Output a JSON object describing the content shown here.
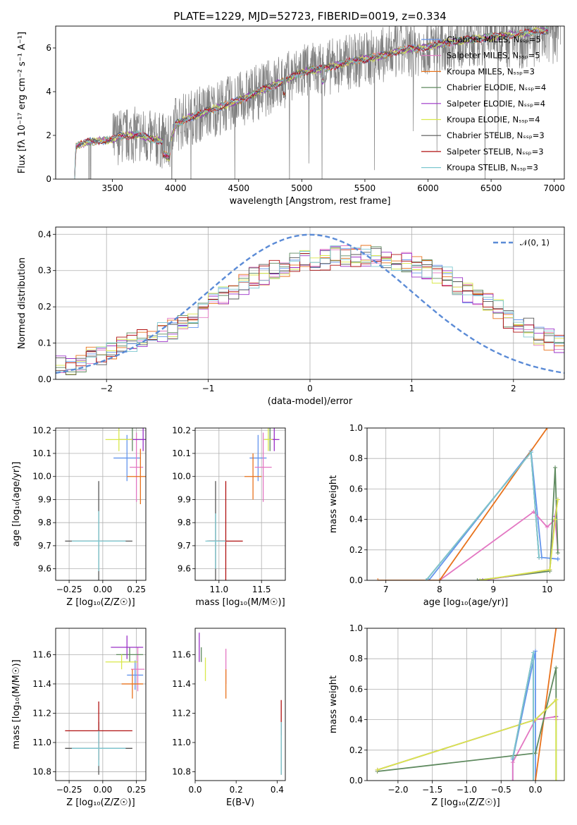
{
  "title": "PLATE=1229, MJD=52723, FIBERID=0019, z=0.334",
  "colors": {
    "Chabrier MILES": "#6495ed",
    "Salpeter MILES": "#e377c2",
    "Kroupa MILES": "#e8721c",
    "Chabrier ELODIE": "#5f8a5f",
    "Salpeter ELODIE": "#9b30c8",
    "Kroupa ELODIE": "#d9e84a",
    "Chabrier STELIB": "#555555",
    "Salpeter STELIB": "#b01010",
    "Kroupa STELIB": "#7ec8d0",
    "data": "#808080",
    "gauss": "#5b8bd6"
  },
  "chart_data": [
    {
      "type": "line",
      "title": "PLATE=1229, MJD=52723, FIBERID=0019, z=0.334",
      "xlabel": "wavelength [Angstrom, rest frame]",
      "ylabel": "Flux [fλ 10⁻¹⁷ erg cm⁻² s⁻¹ A⁻¹]",
      "xlim": [
        3050,
        7080
      ],
      "ylim": [
        0,
        7
      ],
      "xticks": [
        3500,
        4000,
        4500,
        5000,
        5500,
        6000,
        6500,
        7000
      ],
      "yticks": [
        0,
        2,
        4,
        6
      ],
      "grid": false,
      "legend_position": "top-right",
      "series": [
        {
          "name": "Chabrier MILES, Nₛₛₚ=5"
        },
        {
          "name": "Salpeter MILES, Nₛₛₚ=5"
        },
        {
          "name": "Kroupa MILES, Nₛₛₚ=3"
        },
        {
          "name": "Chabrier ELODIE, Nₛₛₚ=4"
        },
        {
          "name": "Salpeter ELODIE, Nₛₛₚ=4"
        },
        {
          "name": "Kroupa ELODIE, Nₛₛₚ=4"
        },
        {
          "name": "Chabrier STELIB, Nₛₛₚ=3"
        },
        {
          "name": "Salpeter STELIB, Nₛₛₚ=3"
        },
        {
          "name": "Kroupa STELIB, Nₛₛₚ=3"
        }
      ],
      "model_continuum": [
        [
          3200,
          0
        ],
        [
          3210,
          1.5
        ],
        [
          3300,
          1.7
        ],
        [
          3500,
          1.8
        ],
        [
          3550,
          1.95
        ],
        [
          3700,
          2.05
        ],
        [
          3800,
          1.85
        ],
        [
          3900,
          1.75
        ],
        [
          3950,
          1.6
        ],
        [
          4000,
          2.5
        ],
        [
          4100,
          2.8
        ],
        [
          4300,
          3.2
        ],
        [
          4500,
          3.6
        ],
        [
          4700,
          4.1
        ],
        [
          4900,
          4.6
        ],
        [
          5000,
          4.9
        ],
        [
          5200,
          5.1
        ],
        [
          5400,
          5.4
        ],
        [
          5600,
          5.6
        ],
        [
          5800,
          5.9
        ],
        [
          6000,
          6.05
        ],
        [
          6200,
          6.3
        ],
        [
          6500,
          6.5
        ],
        [
          6800,
          6.7
        ],
        [
          6900,
          6.8
        ]
      ],
      "data_noise_start": 3500
    },
    {
      "type": "histogram",
      "xlabel": "(data-model)/error",
      "ylabel": "Normed distribution",
      "xlim": [
        -2.5,
        2.5
      ],
      "ylim": [
        0,
        0.42
      ],
      "xticks": [
        -2,
        -1,
        0,
        1,
        2
      ],
      "yticks": [
        0.0,
        0.1,
        0.2,
        0.3,
        0.4
      ],
      "grid": true,
      "legend": "𝒩(0, 1)",
      "legend_position": "top-right",
      "bin_width": 0.1,
      "bins_start": -2.5,
      "mean_profile": [
        0.04,
        0.04,
        0.05,
        0.06,
        0.07,
        0.08,
        0.09,
        0.1,
        0.11,
        0.12,
        0.13,
        0.14,
        0.16,
        0.17,
        0.19,
        0.21,
        0.23,
        0.24,
        0.26,
        0.28,
        0.29,
        0.3,
        0.31,
        0.32,
        0.33,
        0.33,
        0.33,
        0.34,
        0.34,
        0.34,
        0.34,
        0.34,
        0.33,
        0.33,
        0.32,
        0.31,
        0.3,
        0.29,
        0.28,
        0.26,
        0.24,
        0.23,
        0.21,
        0.19,
        0.17,
        0.15,
        0.14,
        0.12,
        0.11,
        0.1,
        0.08
      ]
    },
    {
      "type": "scatter",
      "xlabel": "Z [log₁₀(Z/Z☉)]",
      "ylabel": "age  [log₁₀(age/yr)]",
      "xlim": [
        -0.35,
        0.32
      ],
      "ylim": [
        9.55,
        10.21
      ],
      "xticks": [
        -0.25,
        0.0,
        0.25
      ],
      "yticks": [
        9.6,
        9.7,
        9.8,
        9.9,
        10.0,
        10.1,
        10.2
      ],
      "grid": true,
      "points": [
        {
          "model": "Chabrier MILES",
          "x": 0.18,
          "y": 10.08,
          "xe": 0.1,
          "ye": 0.1
        },
        {
          "model": "Salpeter MILES",
          "x": 0.25,
          "y": 10.04,
          "xe": 0.05,
          "ye": 0.15
        },
        {
          "model": "Kroupa MILES",
          "x": 0.28,
          "y": 10.0,
          "xe": 0.1,
          "ye": 0.12
        },
        {
          "model": "Chabrier ELODIE",
          "x": 0.22,
          "y": 10.16,
          "xe": 0.1,
          "ye": 0.05
        },
        {
          "model": "Salpeter ELODIE",
          "x": 0.3,
          "y": 10.16,
          "xe": 0.1,
          "ye": 0.05
        },
        {
          "model": "Kroupa ELODIE",
          "x": 0.12,
          "y": 10.16,
          "xe": 0.1,
          "ye": 0.05
        },
        {
          "model": "Chabrier STELIB",
          "x": -0.03,
          "y": 9.72,
          "xe": 0.25,
          "ye": 0.26
        },
        {
          "model": "Kroupa STELIB",
          "x": -0.03,
          "y": 9.72,
          "xe": 0.2,
          "ye": 0.13
        }
      ]
    },
    {
      "type": "scatter",
      "xlabel": "mass [log₁₀(M/M☉)]",
      "ylabel": "",
      "xlim": [
        10.72,
        11.78
      ],
      "ylim": [
        9.55,
        10.21
      ],
      "xticks": [
        11.0,
        11.5
      ],
      "yticks": [
        9.6,
        9.7,
        9.8,
        9.9,
        10.0,
        10.1,
        10.2
      ],
      "grid": true,
      "points": [
        {
          "model": "Chabrier MILES",
          "x": 11.46,
          "y": 10.08,
          "xe": 0.1,
          "ye": 0.1
        },
        {
          "model": "Salpeter MILES",
          "x": 11.52,
          "y": 10.04,
          "xe": 0.1,
          "ye": 0.15
        },
        {
          "model": "Kroupa MILES",
          "x": 11.4,
          "y": 10.0,
          "xe": 0.1,
          "ye": 0.1
        },
        {
          "model": "Chabrier ELODIE",
          "x": 11.6,
          "y": 10.16,
          "xe": 0.07,
          "ye": 0.05
        },
        {
          "model": "Salpeter ELODIE",
          "x": 11.65,
          "y": 10.16,
          "xe": 0.06,
          "ye": 0.05
        },
        {
          "model": "Kroupa ELODIE",
          "x": 11.58,
          "y": 10.16,
          "xe": 0.05,
          "ye": 0.05
        },
        {
          "model": "Chabrier STELIB",
          "x": 10.96,
          "y": 9.72,
          "xe": 0.1,
          "ye": 0.26
        },
        {
          "model": "Salpeter STELIB",
          "x": 11.08,
          "y": 9.72,
          "xe": 0.2,
          "ye": 0.26
        },
        {
          "model": "Kroupa STELIB",
          "x": 10.96,
          "y": 9.72,
          "xe": 0.12,
          "ye": 0.12
        }
      ]
    },
    {
      "type": "line",
      "xlabel": "age  [log₁₀(age/yr)]",
      "ylabel": "mass weight",
      "xlim": [
        6.65,
        10.32
      ],
      "ylim": [
        0,
        1
      ],
      "xticks": [
        7,
        8,
        9,
        10
      ],
      "yticks": [
        0.0,
        0.2,
        0.4,
        0.6,
        0.8,
        1.0
      ],
      "grid": true,
      "series": [
        {
          "model": "Chabrier MILES",
          "x": [
            7.8,
            9.7,
            9.9,
            10.2,
            10.2
          ],
          "y": [
            0.0,
            0.85,
            0.15,
            0.14,
            0.14
          ]
        },
        {
          "model": "Salpeter MILES",
          "x": [
            8.0,
            9.75,
            10.0,
            10.15,
            10.2
          ],
          "y": [
            0.0,
            0.45,
            0.35,
            0.4,
            0.2
          ]
        },
        {
          "model": "Kroupa MILES",
          "x": [
            6.85,
            8.0,
            10.0
          ],
          "y": [
            0.0,
            0.0,
            1.0
          ]
        },
        {
          "model": "Chabrier ELODIE",
          "x": [
            8.7,
            10.05,
            10.15,
            10.2
          ],
          "y": [
            0.0,
            0.06,
            0.74,
            0.18
          ]
        },
        {
          "model": "Salpeter ELODIE",
          "x": [
            8.8,
            10.05,
            10.15,
            10.2
          ],
          "y": [
            0.0,
            0.07,
            0.42,
            0.53
          ]
        },
        {
          "model": "Kroupa ELODIE",
          "x": [
            8.75,
            10.05,
            10.15,
            10.2
          ],
          "y": [
            0.0,
            0.07,
            0.4,
            0.53
          ]
        },
        {
          "model": "Chabrier STELIB",
          "x": [
            7.75,
            9.7,
            9.85
          ],
          "y": [
            0.0,
            0.84,
            0.15
          ]
        },
        {
          "model": "Kroupa STELIB",
          "x": [
            7.75,
            9.7,
            9.85
          ],
          "y": [
            0.0,
            0.84,
            0.15
          ]
        }
      ]
    },
    {
      "type": "scatter",
      "xlabel": "Z [log₁₀(Z/Z☉)]",
      "ylabel": "mass [log₁₀(M/M☉)]",
      "xlim": [
        -0.35,
        0.32
      ],
      "ylim": [
        10.74,
        11.78
      ],
      "xticks": [
        -0.25,
        0.0,
        0.25
      ],
      "yticks": [
        10.8,
        11.0,
        11.2,
        11.4,
        11.6
      ],
      "grid": true,
      "points": [
        {
          "model": "Chabrier MILES",
          "x": 0.24,
          "y": 11.46,
          "xe": 0.06,
          "ye": 0.1
        },
        {
          "model": "Salpeter MILES",
          "x": 0.26,
          "y": 11.5,
          "xe": 0.05,
          "ye": 0.15
        },
        {
          "model": "Kroupa MILES",
          "x": 0.22,
          "y": 11.4,
          "xe": 0.08,
          "ye": 0.1
        },
        {
          "model": "Chabrier ELODIE",
          "x": 0.2,
          "y": 11.6,
          "xe": 0.1,
          "ye": 0.05
        },
        {
          "model": "Salpeter ELODIE",
          "x": 0.18,
          "y": 11.65,
          "xe": 0.12,
          "ye": 0.08
        },
        {
          "model": "Kroupa ELODIE",
          "x": 0.14,
          "y": 11.55,
          "xe": 0.12,
          "ye": 0.05
        },
        {
          "model": "Chabrier STELIB",
          "x": -0.03,
          "y": 10.96,
          "xe": 0.25,
          "ye": 0.18
        },
        {
          "model": "Salpeter STELIB",
          "x": -0.03,
          "y": 11.08,
          "xe": 0.25,
          "ye": 0.2
        },
        {
          "model": "Kroupa STELIB",
          "x": -0.03,
          "y": 10.96,
          "xe": 0.2,
          "ye": 0.12
        }
      ]
    },
    {
      "type": "scatter",
      "xlabel": "E(B-V)",
      "ylabel": "",
      "xlim": [
        0.0,
        0.44
      ],
      "ylim": [
        10.74,
        11.78
      ],
      "xticks": [
        0.0,
        0.2,
        0.4
      ],
      "yticks": [
        10.8,
        11.0,
        11.2,
        11.4,
        11.6
      ],
      "grid": false,
      "points": [
        {
          "model": "Salpeter ELODIE",
          "x": 0.02,
          "y": 11.65,
          "ye": 0.1
        },
        {
          "model": "Chabrier ELODIE",
          "x": 0.03,
          "y": 11.6,
          "ye": 0.05
        },
        {
          "model": "Kroupa ELODIE",
          "x": 0.05,
          "y": 11.5,
          "ye": 0.08
        },
        {
          "model": "Salpeter MILES",
          "x": 0.15,
          "y": 11.52,
          "ye": 0.12
        },
        {
          "model": "Kroupa MILES",
          "x": 0.15,
          "y": 11.4,
          "ye": 0.1
        },
        {
          "model": "Salpeter STELIB",
          "x": 0.42,
          "y": 11.17,
          "ye": 0.12
        },
        {
          "model": "Chabrier STELIB",
          "x": 0.42,
          "y": 10.96,
          "ye": 0.18
        },
        {
          "model": "Kroupa STELIB",
          "x": 0.42,
          "y": 10.96,
          "ye": 0.18
        }
      ]
    },
    {
      "type": "line",
      "xlabel": "Z [log₁₀(Z/Z☉)]",
      "ylabel": "mass weight",
      "xlim": [
        -2.45,
        0.42
      ],
      "ylim": [
        0,
        1
      ],
      "xticks": [
        -2.0,
        -1.5,
        -1.0,
        -0.5,
        0.0
      ],
      "yticks": [
        0.0,
        0.2,
        0.4,
        0.6,
        0.8,
        1.0
      ],
      "grid": true,
      "series": [
        {
          "model": "Chabrier MILES",
          "x": [
            -0.33,
            -0.33,
            0.0,
            0.0
          ],
          "y": [
            0.0,
            0.14,
            0.85,
            0.0
          ]
        },
        {
          "model": "Salpeter MILES",
          "x": [
            -0.33,
            -0.33,
            0.0,
            0.3,
            0.3
          ],
          "y": [
            0.0,
            0.12,
            0.4,
            0.42,
            0.4
          ]
        },
        {
          "model": "Kroupa MILES",
          "x": [
            0.0,
            0.0,
            0.3
          ],
          "y": [
            0.0,
            0.0,
            1.0
          ]
        },
        {
          "model": "Chabrier ELODIE",
          "x": [
            -2.3,
            0.0,
            0.3,
            0.3
          ],
          "y": [
            0.06,
            0.18,
            0.74,
            0.0
          ]
        },
        {
          "model": "Salpeter ELODIE",
          "x": [
            -2.3,
            0.0,
            0.3,
            0.3
          ],
          "y": [
            0.07,
            0.4,
            0.53,
            0.42
          ]
        },
        {
          "model": "Kroupa ELODIE",
          "x": [
            -2.3,
            0.0,
            0.3,
            0.3
          ],
          "y": [
            0.07,
            0.4,
            0.53,
            0.0
          ]
        },
        {
          "model": "Chabrier STELIB",
          "x": [
            -0.33,
            -0.03,
            -0.03
          ],
          "y": [
            0.15,
            0.84,
            0.0
          ]
        },
        {
          "model": "Kroupa STELIB",
          "x": [
            -0.33,
            -0.03,
            -0.03
          ],
          "y": [
            0.15,
            0.84,
            0.0
          ]
        }
      ]
    }
  ]
}
